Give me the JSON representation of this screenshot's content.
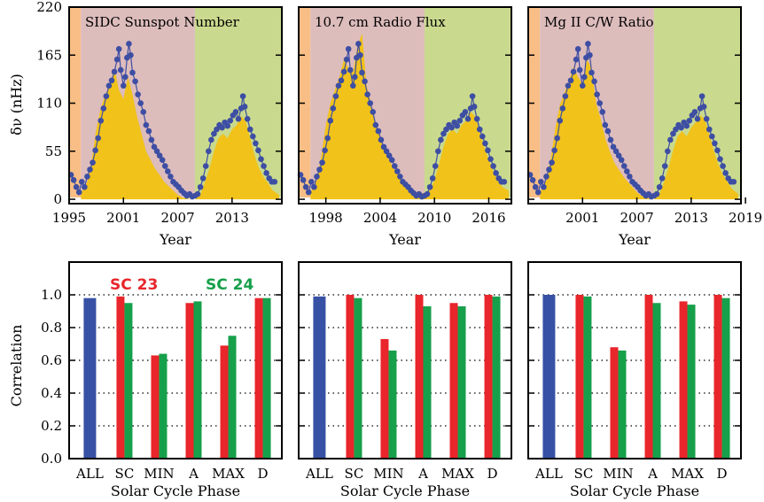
{
  "colors": {
    "rise_bg": "#f8be86",
    "sc23_bg": "#ddbcbc",
    "sc24_bg": "#c9da8e",
    "proxy_fill": "#f1c21a",
    "freq_line": "#3d4ea3",
    "bar_all": "#3751a4",
    "bar_sc23": "#e8262b",
    "bar_sc24": "#17a04b"
  },
  "figure": {
    "top_ylabel": "δν (nHz)",
    "top_xlabel": "Year",
    "bottom_ylabel": "Correlation",
    "bottom_xlabel": "Solar Cycle Phase",
    "legend": {
      "sc23": "SC 23",
      "sc24": "SC 24"
    }
  },
  "chart_data": [
    {
      "type": "area",
      "title": "SIDC Sunspot Number",
      "xlabel": "Year",
      "ylabel": "δν (nHz)",
      "xlim": [
        1995,
        2018.5
      ],
      "ylim": [
        -5,
        220
      ],
      "xticks": [
        "1995",
        "2001",
        "2007",
        "2013"
      ],
      "yticks": [
        "0",
        "55",
        "110",
        "165",
        "220"
      ],
      "phase_bounds": [
        1995,
        1996.3,
        2008.9,
        2018.5
      ],
      "series": [
        {
          "x": [
            1996.3,
            1997,
            1997.5,
            1998,
            1998.5,
            1999,
            1999.5,
            2000,
            2000.5,
            2001,
            2001.5,
            2002,
            2002.5,
            2003,
            2003.5,
            2004,
            2004.5,
            2005,
            2005.5,
            2006,
            2006.5,
            2007,
            2007.5,
            2008,
            2008.5,
            2008.9
          ],
          "values": [
            7,
            20,
            45,
            80,
            105,
            120,
            130,
            150,
            125,
            115,
            140,
            120,
            95,
            75,
            55,
            45,
            35,
            28,
            20,
            15,
            10,
            5,
            2,
            1,
            0,
            0
          ]
        },
        {
          "x": [
            2008.9,
            2009.5,
            2010,
            2010.5,
            2011,
            2011.5,
            2012,
            2012.5,
            2013,
            2013.5,
            2014,
            2014.5,
            2015,
            2015.5,
            2016,
            2016.5,
            2017,
            2017.5,
            2018.2
          ],
          "values": [
            0,
            5,
            20,
            35,
            55,
            70,
            75,
            70,
            80,
            85,
            95,
            90,
            70,
            50,
            35,
            25,
            18,
            10,
            5
          ]
        }
      ],
      "frequency_shift": {
        "x": [
          1995.2,
          1995.5,
          1995.8,
          1996.1,
          1996.4,
          1996.7,
          1997,
          1997.3,
          1997.6,
          1997.9,
          1998.2,
          1998.5,
          1998.8,
          1999.1,
          1999.4,
          1999.7,
          2000,
          2000.3,
          2000.5,
          2000.7,
          2001,
          2001.2,
          2001.4,
          2001.6,
          2001.8,
          2002,
          2002.3,
          2002.6,
          2002.9,
          2003.2,
          2003.5,
          2003.8,
          2004.1,
          2004.4,
          2004.7,
          2005,
          2005.3,
          2005.6,
          2005.9,
          2006.2,
          2006.5,
          2006.8,
          2007.1,
          2007.4,
          2007.7,
          2008,
          2008.3,
          2008.6,
          2008.9,
          2009.2,
          2009.5,
          2009.8,
          2010.1,
          2010.4,
          2010.7,
          2011,
          2011.3,
          2011.6,
          2011.9,
          2012.2,
          2012.5,
          2012.8,
          2013.1,
          2013.4,
          2013.7,
          2014,
          2014.2,
          2014.4,
          2014.7,
          2015,
          2015.3,
          2015.6,
          2015.9,
          2016.2,
          2016.5,
          2016.8,
          2017.1,
          2017.4,
          2017.7
        ],
        "values": [
          28,
          22,
          14,
          8,
          20,
          14,
          26,
          34,
          42,
          56,
          70,
          90,
          104,
          118,
          130,
          136,
          146,
          160,
          172,
          148,
          130,
          140,
          162,
          178,
          165,
          145,
          135,
          120,
          110,
          100,
          85,
          78,
          68,
          60,
          55,
          50,
          45,
          38,
          32,
          26,
          20,
          17,
          14,
          10,
          7,
          4,
          6,
          3,
          4,
          6,
          14,
          24,
          38,
          55,
          68,
          75,
          80,
          85,
          82,
          88,
          84,
          90,
          96,
          100,
          92,
          104,
          118,
          106,
          92,
          80,
          72,
          64,
          56,
          46,
          38,
          30,
          24,
          20,
          20
        ]
      }
    },
    {
      "type": "area",
      "title": "10.7 cm Radio Flux",
      "xlabel": "Year",
      "ylabel": "δν (nHz)",
      "xlim": [
        1995,
        2018.5
      ],
      "ylim": [
        -5,
        220
      ],
      "xticks": [
        "1998",
        "2004",
        "2010",
        "2016"
      ],
      "yticks": [
        "0",
        "55",
        "110",
        "165",
        "220"
      ],
      "phase_bounds": [
        1995,
        1996.3,
        2008.9,
        2018.5
      ],
      "series": [
        {
          "x": [
            1996.3,
            1997,
            1997.5,
            1998,
            1998.5,
            1999,
            1999.5,
            2000,
            2000.5,
            2001,
            2001.5,
            2002,
            2002.5,
            2003,
            2003.5,
            2004,
            2004.5,
            2005,
            2005.5,
            2006,
            2006.5,
            2007,
            2007.5,
            2008,
            2008.5,
            2008.9
          ],
          "values": [
            8,
            22,
            50,
            85,
            110,
            125,
            140,
            160,
            150,
            145,
            175,
            190,
            130,
            110,
            85,
            70,
            55,
            45,
            35,
            28,
            22,
            16,
            10,
            8,
            7,
            7
          ]
        },
        {
          "x": [
            2008.9,
            2009.5,
            2010,
            2010.5,
            2011,
            2011.5,
            2012,
            2012.5,
            2013,
            2013.5,
            2014,
            2014.5,
            2015,
            2015.5,
            2016,
            2016.5,
            2017,
            2017.5,
            2018.2
          ],
          "values": [
            7,
            10,
            22,
            40,
            60,
            75,
            80,
            75,
            85,
            90,
            100,
            95,
            78,
            60,
            45,
            32,
            22,
            14,
            10
          ]
        }
      ],
      "frequency_shift": {
        "x": [
          1995.2,
          1995.5,
          1995.8,
          1996.1,
          1996.4,
          1996.7,
          1997,
          1997.3,
          1997.6,
          1997.9,
          1998.2,
          1998.5,
          1998.8,
          1999.1,
          1999.4,
          1999.7,
          2000,
          2000.3,
          2000.5,
          2000.7,
          2001,
          2001.2,
          2001.4,
          2001.6,
          2001.8,
          2002,
          2002.3,
          2002.6,
          2002.9,
          2003.2,
          2003.5,
          2003.8,
          2004.1,
          2004.4,
          2004.7,
          2005,
          2005.3,
          2005.6,
          2005.9,
          2006.2,
          2006.5,
          2006.8,
          2007.1,
          2007.4,
          2007.7,
          2008,
          2008.3,
          2008.6,
          2008.9,
          2009.2,
          2009.5,
          2009.8,
          2010.1,
          2010.4,
          2010.7,
          2011,
          2011.3,
          2011.6,
          2011.9,
          2012.2,
          2012.5,
          2012.8,
          2013.1,
          2013.4,
          2013.7,
          2014,
          2014.2,
          2014.4,
          2014.7,
          2015,
          2015.3,
          2015.6,
          2015.9,
          2016.2,
          2016.5,
          2016.8,
          2017.1,
          2017.4,
          2017.7
        ],
        "values": [
          28,
          22,
          14,
          8,
          20,
          14,
          26,
          34,
          42,
          56,
          70,
          90,
          104,
          118,
          130,
          136,
          146,
          160,
          172,
          148,
          130,
          140,
          162,
          178,
          165,
          145,
          135,
          120,
          110,
          100,
          85,
          78,
          68,
          60,
          55,
          50,
          45,
          38,
          32,
          26,
          20,
          17,
          14,
          10,
          7,
          4,
          6,
          3,
          4,
          6,
          14,
          24,
          38,
          55,
          68,
          75,
          80,
          85,
          82,
          88,
          84,
          90,
          96,
          100,
          92,
          104,
          118,
          106,
          92,
          80,
          72,
          64,
          56,
          46,
          38,
          30,
          24,
          20,
          20
        ]
      }
    },
    {
      "type": "area",
      "title": "Mg II C/W Ratio",
      "xlabel": "Year",
      "ylabel": "δν (nHz)",
      "xlim": [
        1995,
        2018.5
      ],
      "ylim": [
        -5,
        220
      ],
      "xticks": [
        "2001",
        "2013",
        "2019"
      ],
      "xticks_extra": [
        "2007"
      ],
      "yticks": [
        "0",
        "55",
        "110",
        "165",
        "220"
      ],
      "phase_bounds": [
        1995,
        1996.3,
        2008.9,
        2018.5
      ],
      "series": [
        {
          "x": [
            1996.3,
            1997,
            1997.5,
            1998,
            1998.5,
            1999,
            1999.5,
            2000,
            2000.5,
            2001,
            2001.5,
            2002,
            2002.5,
            2003,
            2003.5,
            2004,
            2004.5,
            2005,
            2005.5,
            2006,
            2006.5,
            2007,
            2007.5,
            2008,
            2008.5,
            2008.9
          ],
          "values": [
            8,
            22,
            48,
            82,
            108,
            122,
            135,
            152,
            140,
            132,
            160,
            150,
            110,
            92,
            70,
            55,
            42,
            34,
            26,
            20,
            14,
            8,
            4,
            2,
            1,
            0
          ]
        },
        {
          "x": [
            2008.9,
            2009.5,
            2010,
            2010.5,
            2011,
            2011.5,
            2012,
            2012.5,
            2013,
            2013.5,
            2014,
            2014.5,
            2015,
            2015.5,
            2016,
            2016.5,
            2017,
            2017.5,
            2018.2
          ],
          "values": [
            0,
            6,
            20,
            36,
            56,
            72,
            78,
            72,
            82,
            88,
            96,
            92,
            74,
            56,
            40,
            28,
            20,
            12,
            6
          ]
        }
      ],
      "frequency_shift": {
        "x": [
          1995.2,
          1995.5,
          1995.8,
          1996.1,
          1996.4,
          1996.7,
          1997,
          1997.3,
          1997.6,
          1997.9,
          1998.2,
          1998.5,
          1998.8,
          1999.1,
          1999.4,
          1999.7,
          2000,
          2000.3,
          2000.5,
          2000.7,
          2001,
          2001.2,
          2001.4,
          2001.6,
          2001.8,
          2002,
          2002.3,
          2002.6,
          2002.9,
          2003.2,
          2003.5,
          2003.8,
          2004.1,
          2004.4,
          2004.7,
          2005,
          2005.3,
          2005.6,
          2005.9,
          2006.2,
          2006.5,
          2006.8,
          2007.1,
          2007.4,
          2007.7,
          2008,
          2008.3,
          2008.6,
          2008.9,
          2009.2,
          2009.5,
          2009.8,
          2010.1,
          2010.4,
          2010.7,
          2011,
          2011.3,
          2011.6,
          2011.9,
          2012.2,
          2012.5,
          2012.8,
          2013.1,
          2013.4,
          2013.7,
          2014,
          2014.2,
          2014.4,
          2014.7,
          2015,
          2015.3,
          2015.6,
          2015.9,
          2016.2,
          2016.5,
          2016.8,
          2017.1,
          2017.4,
          2017.7
        ],
        "values": [
          28,
          22,
          14,
          8,
          20,
          14,
          26,
          34,
          42,
          56,
          70,
          90,
          104,
          118,
          130,
          136,
          146,
          160,
          172,
          148,
          130,
          140,
          162,
          178,
          165,
          145,
          135,
          120,
          110,
          100,
          85,
          78,
          68,
          60,
          55,
          50,
          45,
          38,
          32,
          26,
          20,
          17,
          14,
          10,
          7,
          4,
          6,
          3,
          4,
          6,
          14,
          24,
          38,
          55,
          68,
          75,
          80,
          85,
          82,
          88,
          84,
          90,
          96,
          100,
          92,
          104,
          118,
          106,
          92,
          80,
          72,
          64,
          56,
          46,
          38,
          30,
          24,
          20,
          20
        ]
      }
    },
    {
      "type": "bar",
      "xlabel": "Solar Cycle Phase",
      "ylabel": "Correlation",
      "ylim": [
        0,
        1.2
      ],
      "yticks": [
        "0.0",
        "0.2",
        "0.4",
        "0.6",
        "0.8",
        "1.0"
      ],
      "categories": [
        "ALL",
        "SC",
        "MIN",
        "A",
        "MAX",
        "D"
      ],
      "all_value": 0.98,
      "series": [
        {
          "name": "SC 23",
          "values": [
            null,
            0.99,
            0.63,
            0.95,
            0.69,
            0.98
          ]
        },
        {
          "name": "SC 24",
          "values": [
            null,
            0.95,
            0.64,
            0.96,
            0.75,
            0.98
          ]
        }
      ]
    },
    {
      "type": "bar",
      "xlabel": "Solar Cycle Phase",
      "ylabel": "Correlation",
      "ylim": [
        0,
        1.2
      ],
      "yticks": [
        "0.0",
        "0.2",
        "0.4",
        "0.6",
        "0.8",
        "1.0"
      ],
      "categories": [
        "ALL",
        "SC",
        "MIN",
        "A",
        "MAX",
        "D"
      ],
      "all_value": 0.99,
      "series": [
        {
          "name": "SC 23",
          "values": [
            null,
            1.0,
            0.73,
            1.0,
            0.95,
            1.0
          ]
        },
        {
          "name": "SC 24",
          "values": [
            null,
            0.98,
            0.66,
            0.93,
            0.93,
            0.99
          ]
        }
      ]
    },
    {
      "type": "bar",
      "xlabel": "Solar Cycle Phase",
      "ylabel": "Correlation",
      "ylim": [
        0,
        1.2
      ],
      "yticks": [
        "0.0",
        "0.2",
        "0.4",
        "0.6",
        "0.8",
        "1.0"
      ],
      "categories": [
        "ALL",
        "SC",
        "MIN",
        "A",
        "MAX",
        "D"
      ],
      "all_value": 1.0,
      "series": [
        {
          "name": "SC 23",
          "values": [
            null,
            1.0,
            0.68,
            1.0,
            0.96,
            1.0
          ]
        },
        {
          "name": "SC 24",
          "values": [
            null,
            0.99,
            0.66,
            0.95,
            0.94,
            0.98
          ]
        }
      ]
    }
  ]
}
